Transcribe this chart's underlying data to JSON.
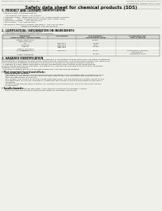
{
  "bg_color": "#f0f0eb",
  "header_left": "Product Name: Lithium Ion Battery Cell",
  "header_right_line1": "Substance Number: ELM34600AA-S",
  "header_right_line2": "Established / Revision: Dec.7 2010",
  "title": "Safety data sheet for chemical products (SDS)",
  "section1_title": "1. PRODUCT AND COMPANY IDENTIFICATION",
  "section1_lines": [
    "  • Product name: Lithium Ion Battery Cell",
    "  • Product code: Cylindrical-type cell",
    "       IFR 18650U, IFR 18650L, IFR 18650A",
    "  • Company name:   Benzy Electric Co., Ltd., Mobile Energy Company",
    "  • Address:       200-1  Kamimakuhari, Sumoto-City, Hyogo, Japan",
    "  • Telephone number:   +81-799-26-4111",
    "  • Fax number:   +81-799-26-4120",
    "  • Emergency telephone number (Weekday): +81-799-26-3662",
    "                                (Night and holiday): +81-799-26-4131"
  ],
  "section2_title": "2. COMPOSITION / INFORMATION ON INGREDIENTS",
  "section2_intro": "  • Substance or preparation: Preparation",
  "section2_sub": "  • Information about the chemical nature of product:",
  "table_header_row1": [
    "Component",
    "CAS number",
    "Concentration /",
    "Classification and"
  ],
  "table_header_row2": [
    "Common name / General name",
    "",
    "Concentration range",
    "hazard labeling"
  ],
  "table_rows": [
    [
      "Lithium cobalt oxide\n(LiMn-Co-Ni-O2)",
      "-",
      "30-60%",
      "-"
    ],
    [
      "Iron",
      "7439-89-6",
      "15-25%",
      "-"
    ],
    [
      "Aluminum",
      "7429-90-5",
      "3-6%",
      "-"
    ],
    [
      "Graphite\n(Flake or graphite-I)\n(Artificial graphite-I)",
      "7782-42-5\n7782-42-5",
      "15-30%",
      "-"
    ],
    [
      "Copper",
      "7440-50-8",
      "5-15%",
      "Sensitization of the skin\ngroup R43.2"
    ],
    [
      "Organic electrolyte",
      "-",
      "10-20%",
      "Inflammable liquid"
    ]
  ],
  "section3_title": "3. HAZARDS IDENTIFICATION",
  "section3_lines": [
    "For the battery cell, chemical substances are stored in a hermetically sealed metal case, designed to withstand",
    "temperatures provided by electric-characteristics during normal use. As a result, during normal use, there is no",
    "physical danger of ignition or explosion and there is no danger of hazardous materials leakage.",
    "  If exposed to a fire, added mechanical shocks, decomposes, under electric short-circuit misuse,",
    "the gas release vent can be operated. The battery cell case will be breached at the extreme, hazardous",
    "materials may be released.",
    "  Moreover, if heated strongly by the surrounding fire, soot gas may be emitted."
  ],
  "section3_bullet1": "• Most important hazard and effects:",
  "section3_human": "  Human health effects:",
  "section3_inhal_lines": [
    "      Inhalation: The release of the electrolyte has an anesthesia action and stimulates in respiratory tract.",
    "      Skin contact: The release of the electrolyte stimulates a skin. The electrolyte skin contact causes a",
    "      sore and stimulation on the skin.",
    "      Eye contact: The release of the electrolyte stimulates eyes. The electrolyte eye contact causes a sore",
    "      and stimulation on the eye. Especially, a substance that causes a strong inflammation of the eyes is",
    "      contained."
  ],
  "section3_env_lines": [
    "      Environmental effects: Since a battery cell remains in the environment, do not throw out it into the",
    "      environment."
  ],
  "section3_bullet2": "• Specific hazards:",
  "section3_spec_lines": [
    "      If the electrolyte contacts with water, it will generate detrimental hydrogen fluoride.",
    "      Since the used electrolyte is inflammable liquid, do not bring close to fire."
  ]
}
